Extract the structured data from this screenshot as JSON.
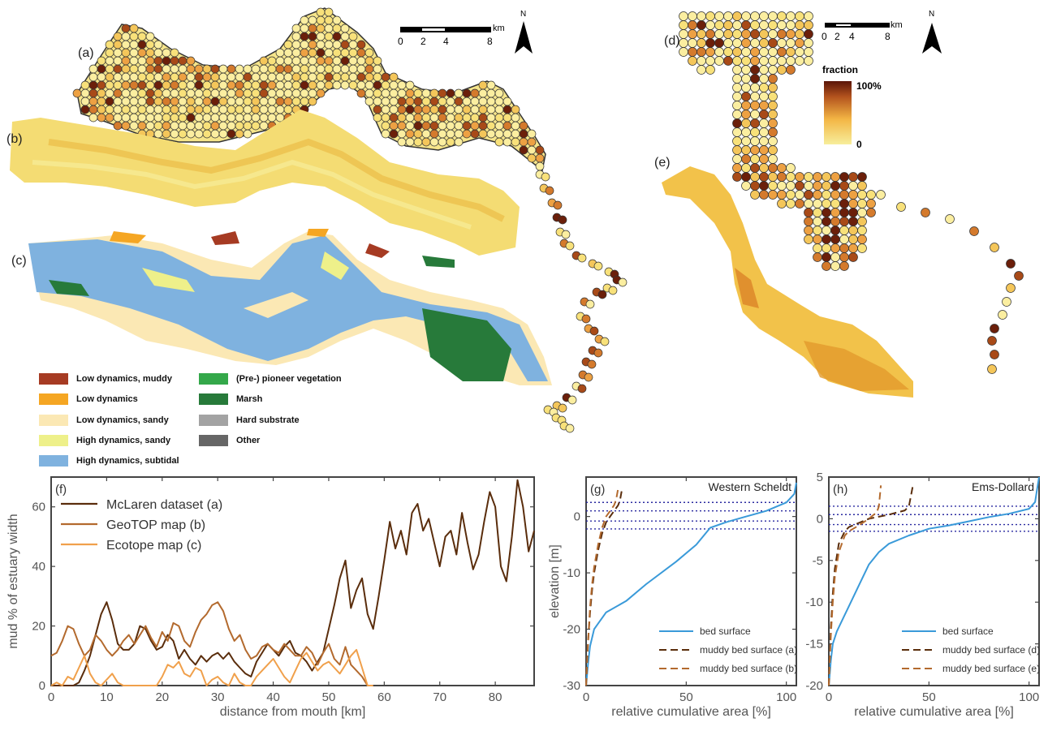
{
  "maps": {
    "panel_a": "(a)",
    "panel_b": "(b)",
    "panel_c": "(c)",
    "panel_d": "(d)",
    "panel_e": "(e)",
    "scale_left": {
      "ticks": [
        "0",
        "2",
        "4",
        "8"
      ],
      "unit": "km"
    },
    "scale_right": {
      "ticks": [
        "0",
        "2",
        "4",
        "8"
      ],
      "unit": "km"
    },
    "north_symbol": "N",
    "fraction_title": "fraction",
    "fraction_max": "100%",
    "fraction_min": "0",
    "ecotope_legend": [
      {
        "label": "Low dynamics, muddy",
        "color": "#a63b23"
      },
      {
        "label": "Low dynamics",
        "color": "#f5a623"
      },
      {
        "label": "Low dynamics, sandy",
        "color": "#fbe8b4"
      },
      {
        "label": "High dynamics, sandy",
        "color": "#eef08a"
      },
      {
        "label": "High dynamics, subtidal",
        "color": "#7fb2df"
      },
      {
        "label": "(Pre-) pioneer vegetation",
        "color": "#34a84a"
      },
      {
        "label": "Marsh",
        "color": "#277a3a"
      },
      {
        "label": "Hard substrate",
        "color": "#a3a3a3"
      },
      {
        "label": "Other",
        "color": "#666666"
      }
    ]
  },
  "chart_data": [
    {
      "type": "line",
      "panel": "(f)",
      "xlabel": "distance from mouth [km]",
      "ylabel": "mud % of estuary width",
      "xlim": [
        0,
        87
      ],
      "ylim": [
        0,
        70
      ],
      "xticks": [
        0,
        10,
        20,
        30,
        40,
        50,
        60,
        70,
        80
      ],
      "yticks": [
        0,
        20,
        40,
        60
      ],
      "legend_position": "top-left",
      "series": [
        {
          "name": "McLaren dataset (a)",
          "color": "#5a2d0c",
          "x": [
            0,
            2,
            4,
            5,
            6,
            7,
            8,
            9,
            10,
            11,
            12,
            13,
            14,
            15,
            16,
            17,
            18,
            19,
            20,
            21,
            22,
            23,
            24,
            25,
            26,
            27,
            28,
            29,
            30,
            31,
            32,
            33,
            34,
            35,
            36,
            37,
            38,
            39,
            40,
            41,
            42,
            43,
            44,
            45,
            46,
            47,
            48,
            49,
            50,
            51,
            52,
            53,
            54,
            55,
            56,
            57,
            58,
            59,
            60,
            61,
            62,
            63,
            64,
            65,
            66,
            67,
            68,
            69,
            70,
            71,
            72,
            73,
            74,
            75,
            76,
            77,
            78,
            79,
            80,
            81,
            82,
            83,
            84,
            85,
            86,
            87
          ],
          "y": [
            0,
            0,
            0,
            1,
            5,
            10,
            17,
            24,
            28,
            22,
            14,
            12,
            12,
            14,
            20,
            19,
            15,
            12,
            13,
            17,
            15,
            9,
            12,
            9,
            7,
            10,
            8,
            10,
            11,
            9,
            11,
            8,
            6,
            4,
            3,
            8,
            11,
            14,
            12,
            10,
            13,
            15,
            11,
            10,
            8,
            5,
            8,
            11,
            19,
            27,
            36,
            42,
            26,
            32,
            36,
            24,
            19,
            30,
            42,
            55,
            46,
            52,
            44,
            58,
            61,
            52,
            56,
            48,
            40,
            50,
            52,
            44,
            58,
            48,
            39,
            44,
            55,
            65,
            60,
            40,
            35,
            50,
            69,
            60,
            45,
            52
          ]
        },
        {
          "name": "GeoTOP map (b)",
          "color": "#b36a2e",
          "x": [
            0,
            1,
            2,
            3,
            4,
            5,
            6,
            7,
            8,
            9,
            10,
            11,
            12,
            13,
            14,
            15,
            16,
            17,
            18,
            19,
            20,
            21,
            22,
            23,
            24,
            25,
            26,
            27,
            28,
            29,
            30,
            31,
            32,
            33,
            34,
            35,
            36,
            37,
            38,
            39,
            40,
            41,
            42,
            43,
            44,
            45,
            46,
            47,
            48,
            49,
            50,
            51,
            52,
            53,
            54,
            55,
            56,
            57
          ],
          "y": [
            10,
            11,
            15,
            20,
            19,
            14,
            10,
            12,
            17,
            15,
            12,
            10,
            12,
            15,
            17,
            14,
            17,
            20,
            16,
            13,
            18,
            15,
            21,
            20,
            15,
            13,
            18,
            22,
            24,
            27,
            28,
            25,
            19,
            15,
            17,
            12,
            9,
            10,
            13,
            14,
            12,
            11,
            14,
            12,
            10,
            10,
            13,
            11,
            7,
            11,
            14,
            9,
            7,
            13,
            7,
            5,
            3,
            0
          ]
        },
        {
          "name": "Ecotope map (c)",
          "color": "#f0a04b",
          "x": [
            0,
            1,
            2,
            3,
            4,
            5,
            6,
            7,
            8,
            9,
            10,
            11,
            12,
            13,
            14,
            15,
            16,
            17,
            18,
            19,
            20,
            21,
            22,
            23,
            24,
            25,
            26,
            27,
            28,
            29,
            30,
            31,
            32,
            33,
            34,
            35,
            36,
            37,
            38,
            39,
            40,
            41,
            42,
            43,
            44,
            45,
            46,
            47,
            48,
            49,
            50,
            51,
            52,
            53,
            54,
            55,
            56,
            57,
            58
          ],
          "y": [
            0,
            1,
            0,
            3,
            2,
            6,
            10,
            4,
            1,
            0,
            2,
            4,
            1,
            0,
            0,
            0,
            0,
            0,
            0,
            0,
            3,
            7,
            6,
            8,
            4,
            3,
            6,
            5,
            0,
            2,
            3,
            1,
            0,
            4,
            1,
            0,
            0,
            3,
            5,
            7,
            9,
            6,
            3,
            1,
            5,
            9,
            11,
            8,
            5,
            7,
            8,
            6,
            4,
            7,
            10,
            12,
            6,
            0,
            0
          ]
        }
      ]
    },
    {
      "type": "line",
      "panel": "(g)",
      "annotation": "Western Scheldt",
      "xlabel": "relative cumulative area [%]",
      "ylabel": "elevation [m]",
      "xlim": [
        0,
        105
      ],
      "ylim": [
        -30,
        7
      ],
      "xticks": [
        0,
        50,
        100
      ],
      "yticks": [
        -30,
        -20,
        -10,
        0
      ],
      "legend_position": "bottom-right",
      "hlines": [
        2.5,
        1.0,
        -0.8,
        -2.2
      ],
      "series": [
        {
          "name": "bed surface",
          "color": "#3a9ad9",
          "dash": false,
          "x": [
            0,
            1,
            2,
            4,
            6,
            10,
            20,
            30,
            45,
            55,
            62,
            70,
            80,
            90,
            100,
            104,
            105
          ],
          "y": [
            -30,
            -26,
            -23,
            -20,
            -19,
            -17,
            -15,
            -12,
            -8,
            -5,
            -2,
            -1,
            0,
            1,
            2.5,
            4,
            6
          ]
        },
        {
          "name": "muddy bed surface (a)",
          "color": "#5a2d0c",
          "dash": true,
          "x": [
            0,
            1,
            2,
            3,
            4,
            6,
            8,
            10,
            12,
            14,
            16,
            17,
            18
          ],
          "y": [
            -30,
            -22,
            -17,
            -13,
            -10,
            -6,
            -3,
            -1,
            0,
            1,
            2,
            3,
            5
          ]
        },
        {
          "name": "muddy bed surface (b)",
          "color": "#b36a2e",
          "dash": true,
          "x": [
            0,
            1,
            2,
            3,
            4,
            6,
            8,
            10,
            12,
            14,
            15,
            16
          ],
          "y": [
            -30,
            -22,
            -16,
            -12,
            -9,
            -5,
            -2,
            0,
            1,
            2,
            3,
            5
          ]
        }
      ]
    },
    {
      "type": "line",
      "panel": "(h)",
      "annotation": "Ems-Dollard",
      "xlabel": "relative cumulative area [%]",
      "ylabel": "",
      "xlim": [
        0,
        105
      ],
      "ylim": [
        -20,
        5
      ],
      "xticks": [
        0,
        50,
        100
      ],
      "yticks": [
        -20,
        -15,
        -10,
        -5,
        0,
        5
      ],
      "legend_position": "bottom-right",
      "hlines": [
        1.5,
        0.5,
        -0.7,
        -1.5
      ],
      "series": [
        {
          "name": "bed surface",
          "color": "#3a9ad9",
          "dash": false,
          "x": [
            0,
            1,
            2,
            4,
            6,
            10,
            15,
            20,
            25,
            30,
            40,
            50,
            60,
            70,
            80,
            90,
            100,
            103,
            104,
            105
          ],
          "y": [
            -20,
            -17,
            -15,
            -13.5,
            -12.5,
            -10.5,
            -8,
            -5.5,
            -4,
            -3,
            -2,
            -1.2,
            -0.8,
            -0.3,
            0.2,
            0.6,
            1.2,
            2,
            3.5,
            5
          ]
        },
        {
          "name": "muddy bed surface (d)",
          "color": "#5a2d0c",
          "dash": true,
          "x": [
            0,
            1,
            2,
            3,
            5,
            8,
            10,
            15,
            20,
            30,
            38,
            40,
            42
          ],
          "y": [
            -20,
            -13,
            -9,
            -6,
            -3,
            -1.5,
            -1,
            -0.5,
            0,
            0.5,
            1,
            1.5,
            4
          ]
        },
        {
          "name": "muddy bed surface (e)",
          "color": "#b36a2e",
          "dash": true,
          "x": [
            0,
            1,
            2,
            3,
            5,
            8,
            10,
            15,
            20,
            24,
            25,
            26
          ],
          "y": [
            -20,
            -14,
            -10,
            -7,
            -4,
            -2,
            -1.5,
            -0.8,
            0,
            0.8,
            1.5,
            4
          ]
        }
      ]
    }
  ]
}
